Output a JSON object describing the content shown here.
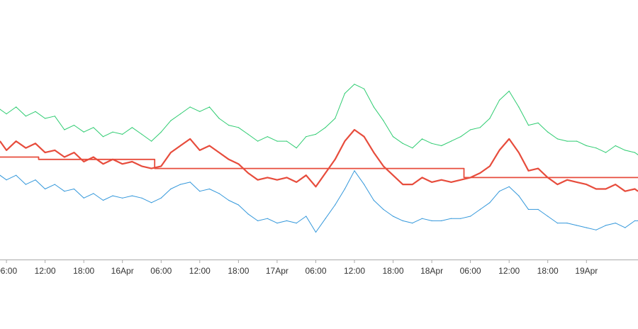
{
  "chart_data": {
    "type": "line",
    "title": "",
    "xlabel": "",
    "ylabel": "",
    "x_range": [
      "2016-04-15 05:00",
      "2016-04-19 08:00"
    ],
    "y_range": [
      0,
      100
    ],
    "y_axis_visible": false,
    "grid": false,
    "legend": "none",
    "x_ticks": [
      {
        "t": "2016-04-15 06:00",
        "label": "06:00"
      },
      {
        "t": "2016-04-15 12:00",
        "label": "12:00"
      },
      {
        "t": "2016-04-15 18:00",
        "label": "18:00"
      },
      {
        "t": "2016-04-16 00:00",
        "label": "16Apr"
      },
      {
        "t": "2016-04-16 06:00",
        "label": "06:00"
      },
      {
        "t": "2016-04-16 12:00",
        "label": "12:00"
      },
      {
        "t": "2016-04-16 18:00",
        "label": "18:00"
      },
      {
        "t": "2016-04-17 00:00",
        "label": "17Apr"
      },
      {
        "t": "2016-04-17 06:00",
        "label": "06:00"
      },
      {
        "t": "2016-04-17 12:00",
        "label": "12:00"
      },
      {
        "t": "2016-04-17 18:00",
        "label": "18:00"
      },
      {
        "t": "2016-04-18 00:00",
        "label": "18Apr"
      },
      {
        "t": "2016-04-18 06:00",
        "label": "06:00"
      },
      {
        "t": "2016-04-18 12:00",
        "label": "12:00"
      },
      {
        "t": "2016-04-18 18:00",
        "label": "18:00"
      },
      {
        "t": "2016-04-19 00:00",
        "label": "19Apr"
      }
    ],
    "series": [
      {
        "key": "upper",
        "color": "#2ecc71",
        "points": [
          [
            "2016-04-15 05:00",
            66
          ],
          [
            "2016-04-15 06:00",
            64
          ],
          [
            "2016-04-15 07:30",
            67
          ],
          [
            "2016-04-15 09:00",
            63
          ],
          [
            "2016-04-15 10:30",
            65
          ],
          [
            "2016-04-15 12:00",
            62
          ],
          [
            "2016-04-15 13:30",
            63
          ],
          [
            "2016-04-15 15:00",
            57
          ],
          [
            "2016-04-15 16:30",
            59
          ],
          [
            "2016-04-15 18:00",
            56
          ],
          [
            "2016-04-15 19:30",
            58
          ],
          [
            "2016-04-15 21:00",
            54
          ],
          [
            "2016-04-15 22:30",
            56
          ],
          [
            "2016-04-16 00:00",
            55
          ],
          [
            "2016-04-16 01:30",
            58
          ],
          [
            "2016-04-16 03:00",
            55
          ],
          [
            "2016-04-16 04:30",
            52
          ],
          [
            "2016-04-16 06:00",
            56
          ],
          [
            "2016-04-16 07:30",
            61
          ],
          [
            "2016-04-16 09:00",
            64
          ],
          [
            "2016-04-16 10:30",
            67
          ],
          [
            "2016-04-16 12:00",
            65
          ],
          [
            "2016-04-16 13:30",
            67
          ],
          [
            "2016-04-16 15:00",
            62
          ],
          [
            "2016-04-16 16:30",
            59
          ],
          [
            "2016-04-16 18:00",
            58
          ],
          [
            "2016-04-16 19:30",
            55
          ],
          [
            "2016-04-16 21:00",
            52
          ],
          [
            "2016-04-16 22:30",
            54
          ],
          [
            "2016-04-17 00:00",
            52
          ],
          [
            "2016-04-17 01:30",
            52
          ],
          [
            "2016-04-17 03:00",
            49
          ],
          [
            "2016-04-17 04:30",
            54
          ],
          [
            "2016-04-17 06:00",
            55
          ],
          [
            "2016-04-17 07:30",
            58
          ],
          [
            "2016-04-17 09:00",
            62
          ],
          [
            "2016-04-17 10:30",
            73
          ],
          [
            "2016-04-17 12:00",
            77
          ],
          [
            "2016-04-17 13:30",
            75
          ],
          [
            "2016-04-17 15:00",
            67
          ],
          [
            "2016-04-17 16:30",
            61
          ],
          [
            "2016-04-17 18:00",
            54
          ],
          [
            "2016-04-17 19:30",
            51
          ],
          [
            "2016-04-17 21:00",
            49
          ],
          [
            "2016-04-17 22:30",
            53
          ],
          [
            "2016-04-18 00:00",
            51
          ],
          [
            "2016-04-18 01:30",
            50
          ],
          [
            "2016-04-18 03:00",
            52
          ],
          [
            "2016-04-18 04:30",
            54
          ],
          [
            "2016-04-18 06:00",
            57
          ],
          [
            "2016-04-18 07:30",
            58
          ],
          [
            "2016-04-18 09:00",
            62
          ],
          [
            "2016-04-18 10:30",
            70
          ],
          [
            "2016-04-18 12:00",
            74
          ],
          [
            "2016-04-18 13:30",
            67
          ],
          [
            "2016-04-18 15:00",
            59
          ],
          [
            "2016-04-18 16:30",
            60
          ],
          [
            "2016-04-18 18:00",
            56
          ],
          [
            "2016-04-18 19:30",
            53
          ],
          [
            "2016-04-18 21:00",
            52
          ],
          [
            "2016-04-18 22:30",
            52
          ],
          [
            "2016-04-19 00:00",
            50
          ],
          [
            "2016-04-19 01:30",
            49
          ],
          [
            "2016-04-19 03:00",
            47
          ],
          [
            "2016-04-19 04:30",
            50
          ],
          [
            "2016-04-19 06:00",
            48
          ],
          [
            "2016-04-19 07:30",
            47
          ],
          [
            "2016-04-19 08:00",
            46
          ]
        ]
      },
      {
        "key": "middle",
        "color": "#e74c3c",
        "points": [
          [
            "2016-04-15 05:00",
            52
          ],
          [
            "2016-04-15 06:00",
            48
          ],
          [
            "2016-04-15 07:30",
            52
          ],
          [
            "2016-04-15 09:00",
            49
          ],
          [
            "2016-04-15 10:30",
            51
          ],
          [
            "2016-04-15 12:00",
            47
          ],
          [
            "2016-04-15 13:30",
            48
          ],
          [
            "2016-04-15 15:00",
            45
          ],
          [
            "2016-04-15 16:30",
            47
          ],
          [
            "2016-04-15 18:00",
            43
          ],
          [
            "2016-04-15 19:30",
            45
          ],
          [
            "2016-04-15 21:00",
            42
          ],
          [
            "2016-04-15 22:30",
            44
          ],
          [
            "2016-04-16 00:00",
            42
          ],
          [
            "2016-04-16 01:30",
            43
          ],
          [
            "2016-04-16 03:00",
            41
          ],
          [
            "2016-04-16 04:30",
            40
          ],
          [
            "2016-04-16 06:00",
            41
          ],
          [
            "2016-04-16 07:30",
            47
          ],
          [
            "2016-04-16 09:00",
            50
          ],
          [
            "2016-04-16 10:30",
            53
          ],
          [
            "2016-04-16 12:00",
            48
          ],
          [
            "2016-04-16 13:30",
            50
          ],
          [
            "2016-04-16 15:00",
            47
          ],
          [
            "2016-04-16 16:30",
            44
          ],
          [
            "2016-04-16 18:00",
            42
          ],
          [
            "2016-04-16 19:30",
            38
          ],
          [
            "2016-04-16 21:00",
            35
          ],
          [
            "2016-04-16 22:30",
            36
          ],
          [
            "2016-04-17 00:00",
            35
          ],
          [
            "2016-04-17 01:30",
            36
          ],
          [
            "2016-04-17 03:00",
            34
          ],
          [
            "2016-04-17 04:30",
            37
          ],
          [
            "2016-04-17 06:00",
            32
          ],
          [
            "2016-04-17 07:30",
            38
          ],
          [
            "2016-04-17 09:00",
            44
          ],
          [
            "2016-04-17 10:30",
            52
          ],
          [
            "2016-04-17 12:00",
            57
          ],
          [
            "2016-04-17 13:30",
            54
          ],
          [
            "2016-04-17 15:00",
            47
          ],
          [
            "2016-04-17 16:30",
            41
          ],
          [
            "2016-04-17 18:00",
            37
          ],
          [
            "2016-04-17 19:30",
            33
          ],
          [
            "2016-04-17 21:00",
            33
          ],
          [
            "2016-04-17 22:30",
            36
          ],
          [
            "2016-04-18 00:00",
            34
          ],
          [
            "2016-04-18 01:30",
            35
          ],
          [
            "2016-04-18 03:00",
            34
          ],
          [
            "2016-04-18 04:30",
            35
          ],
          [
            "2016-04-18 06:00",
            36
          ],
          [
            "2016-04-18 07:30",
            38
          ],
          [
            "2016-04-18 09:00",
            41
          ],
          [
            "2016-04-18 10:30",
            48
          ],
          [
            "2016-04-18 12:00",
            53
          ],
          [
            "2016-04-18 13:30",
            47
          ],
          [
            "2016-04-18 15:00",
            39
          ],
          [
            "2016-04-18 16:30",
            40
          ],
          [
            "2016-04-18 18:00",
            36
          ],
          [
            "2016-04-18 19:30",
            33
          ],
          [
            "2016-04-18 21:00",
            35
          ],
          [
            "2016-04-18 22:30",
            34
          ],
          [
            "2016-04-19 00:00",
            33
          ],
          [
            "2016-04-19 01:30",
            31
          ],
          [
            "2016-04-19 03:00",
            31
          ],
          [
            "2016-04-19 04:30",
            33
          ],
          [
            "2016-04-19 06:00",
            30
          ],
          [
            "2016-04-19 07:30",
            31
          ],
          [
            "2016-04-19 08:00",
            30
          ]
        ]
      },
      {
        "key": "lower",
        "color": "#3498db",
        "points": [
          [
            "2016-04-15 05:00",
            37
          ],
          [
            "2016-04-15 06:00",
            35
          ],
          [
            "2016-04-15 07:30",
            37
          ],
          [
            "2016-04-15 09:00",
            33
          ],
          [
            "2016-04-15 10:30",
            35
          ],
          [
            "2016-04-15 12:00",
            31
          ],
          [
            "2016-04-15 13:30",
            33
          ],
          [
            "2016-04-15 15:00",
            30
          ],
          [
            "2016-04-15 16:30",
            31
          ],
          [
            "2016-04-15 18:00",
            27
          ],
          [
            "2016-04-15 19:30",
            29
          ],
          [
            "2016-04-15 21:00",
            26
          ],
          [
            "2016-04-15 22:30",
            28
          ],
          [
            "2016-04-16 00:00",
            27
          ],
          [
            "2016-04-16 01:30",
            28
          ],
          [
            "2016-04-16 03:00",
            27
          ],
          [
            "2016-04-16 04:30",
            25
          ],
          [
            "2016-04-16 06:00",
            27
          ],
          [
            "2016-04-16 07:30",
            31
          ],
          [
            "2016-04-16 09:00",
            33
          ],
          [
            "2016-04-16 10:30",
            34
          ],
          [
            "2016-04-16 12:00",
            30
          ],
          [
            "2016-04-16 13:30",
            31
          ],
          [
            "2016-04-16 15:00",
            29
          ],
          [
            "2016-04-16 16:30",
            26
          ],
          [
            "2016-04-16 18:00",
            24
          ],
          [
            "2016-04-16 19:30",
            20
          ],
          [
            "2016-04-16 21:00",
            17
          ],
          [
            "2016-04-16 22:30",
            18
          ],
          [
            "2016-04-17 00:00",
            16
          ],
          [
            "2016-04-17 01:30",
            17
          ],
          [
            "2016-04-17 03:00",
            16
          ],
          [
            "2016-04-17 04:30",
            19
          ],
          [
            "2016-04-17 06:00",
            12
          ],
          [
            "2016-04-17 07:30",
            18
          ],
          [
            "2016-04-17 09:00",
            24
          ],
          [
            "2016-04-17 10:30",
            31
          ],
          [
            "2016-04-17 12:00",
            39
          ],
          [
            "2016-04-17 13:30",
            33
          ],
          [
            "2016-04-17 15:00",
            26
          ],
          [
            "2016-04-17 16:30",
            22
          ],
          [
            "2016-04-17 18:00",
            19
          ],
          [
            "2016-04-17 19:30",
            17
          ],
          [
            "2016-04-17 21:00",
            16
          ],
          [
            "2016-04-17 22:30",
            18
          ],
          [
            "2016-04-18 00:00",
            17
          ],
          [
            "2016-04-18 01:30",
            17
          ],
          [
            "2016-04-18 03:00",
            18
          ],
          [
            "2016-04-18 04:30",
            18
          ],
          [
            "2016-04-18 06:00",
            19
          ],
          [
            "2016-04-18 07:30",
            22
          ],
          [
            "2016-04-18 09:00",
            25
          ],
          [
            "2016-04-18 10:30",
            30
          ],
          [
            "2016-04-18 12:00",
            32
          ],
          [
            "2016-04-18 13:30",
            28
          ],
          [
            "2016-04-18 15:00",
            22
          ],
          [
            "2016-04-18 16:30",
            22
          ],
          [
            "2016-04-18 18:00",
            19
          ],
          [
            "2016-04-18 19:30",
            16
          ],
          [
            "2016-04-18 21:00",
            16
          ],
          [
            "2016-04-18 22:30",
            15
          ],
          [
            "2016-04-19 00:00",
            14
          ],
          [
            "2016-04-19 01:30",
            13
          ],
          [
            "2016-04-19 03:00",
            15
          ],
          [
            "2016-04-19 04:30",
            16
          ],
          [
            "2016-04-19 06:00",
            14
          ],
          [
            "2016-04-19 07:30",
            17
          ],
          [
            "2016-04-19 08:00",
            17
          ]
        ]
      },
      {
        "key": "baseline",
        "color": "#e74c3c",
        "step": true,
        "points": [
          [
            "2016-04-15 05:00",
            45
          ],
          [
            "2016-04-15 11:00",
            45
          ],
          [
            "2016-04-15 11:00",
            44
          ],
          [
            "2016-04-16 05:00",
            44
          ],
          [
            "2016-04-16 05:00",
            40
          ],
          [
            "2016-04-17 05:00",
            40
          ],
          [
            "2016-04-17 05:00",
            40
          ],
          [
            "2016-04-18 05:00",
            40
          ],
          [
            "2016-04-18 05:00",
            36
          ],
          [
            "2016-04-19 08:00",
            36
          ]
        ]
      }
    ]
  }
}
